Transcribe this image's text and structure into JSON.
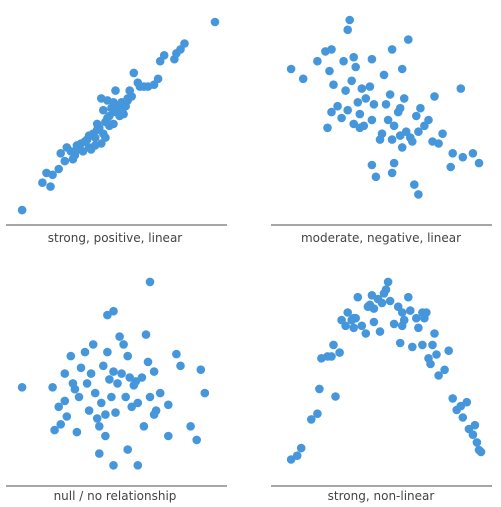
{
  "colors": {
    "point": "#4596db",
    "axis": "#4d4d4d",
    "label": "#444444"
  },
  "chart_data": [
    {
      "type": "scatter",
      "title": "strong, positive, linear",
      "xlim": [
        0,
        10
      ],
      "ylim": [
        0,
        10
      ],
      "points": [
        [
          0.4,
          0.3
        ],
        [
          1.4,
          1.7
        ],
        [
          1.8,
          1.5
        ],
        [
          1.9,
          2.1
        ],
        [
          2.2,
          2.4
        ],
        [
          1.6,
          2.2
        ],
        [
          2.5,
          2.8
        ],
        [
          2.3,
          3.2
        ],
        [
          2.9,
          2.9
        ],
        [
          2.6,
          3.5
        ],
        [
          3.0,
          3.1
        ],
        [
          3.1,
          3.6
        ],
        [
          3.4,
          3.3
        ],
        [
          3.5,
          3.8
        ],
        [
          3.2,
          3.4
        ],
        [
          3.7,
          3.5
        ],
        [
          3.6,
          3.9
        ],
        [
          4.0,
          3.6
        ],
        [
          3.9,
          4.2
        ],
        [
          4.3,
          3.7
        ],
        [
          4.1,
          4.4
        ],
        [
          4.4,
          4.2
        ],
        [
          4.2,
          4.5
        ],
        [
          4.5,
          4.8
        ],
        [
          4.7,
          4.6
        ],
        [
          4.6,
          5.0
        ],
        [
          4.9,
          4.7
        ],
        [
          5.0,
          5.3
        ],
        [
          4.8,
          5.5
        ],
        [
          5.2,
          5.1
        ],
        [
          5.1,
          5.6
        ],
        [
          5.3,
          5.8
        ],
        [
          5.5,
          5.6
        ],
        [
          5.4,
          5.2
        ],
        [
          5.6,
          6.0
        ],
        [
          4.6,
          5.9
        ],
        [
          5.8,
          6.1
        ],
        [
          4.3,
          6.0
        ],
        [
          5.0,
          6.4
        ],
        [
          5.7,
          6.4
        ],
        [
          6.1,
          6.8
        ],
        [
          6.6,
          6.6
        ],
        [
          6.9,
          6.7
        ],
        [
          7.1,
          7.0
        ],
        [
          5.9,
          7.3
        ],
        [
          4.4,
          5.4
        ],
        [
          4.0,
          4.0
        ],
        [
          3.8,
          3.4
        ],
        [
          4.7,
          5.1
        ],
        [
          5.3,
          5.4
        ],
        [
          3.3,
          3.7
        ],
        [
          3.0,
          3.3
        ],
        [
          6.2,
          6.6
        ],
        [
          6.4,
          6.6
        ],
        [
          7.2,
          7.9
        ],
        [
          7.9,
          8.0
        ],
        [
          8.0,
          8.3
        ],
        [
          8.2,
          8.5
        ],
        [
          8.4,
          8.8
        ],
        [
          7.4,
          8.2
        ],
        [
          4.1,
          4.7
        ],
        [
          5.6,
          5.9
        ],
        [
          4.9,
          5.8
        ],
        [
          3.5,
          3.8
        ],
        [
          4.5,
          4.0
        ],
        [
          2.8,
          3.3
        ],
        [
          3.7,
          4.1
        ],
        [
          9.9,
          9.9
        ]
      ]
    },
    {
      "type": "scatter",
      "title": "moderate, negative, linear",
      "xlim": [
        0,
        10
      ],
      "ylim": [
        0,
        10
      ],
      "points": [
        [
          0.5,
          7.5
        ],
        [
          1.1,
          7.0
        ],
        [
          1.8,
          7.9
        ],
        [
          2.2,
          8.4
        ],
        [
          2.4,
          7.4
        ],
        [
          2.5,
          8.5
        ],
        [
          3.1,
          7.9
        ],
        [
          3.3,
          9.5
        ],
        [
          3.6,
          8.1
        ],
        [
          4.5,
          8.0
        ],
        [
          3.4,
          10.0
        ],
        [
          2.6,
          6.7
        ],
        [
          3.2,
          6.4
        ],
        [
          3.5,
          6.9
        ],
        [
          3.8,
          5.8
        ],
        [
          4.2,
          6.0
        ],
        [
          4.4,
          6.6
        ],
        [
          2.8,
          5.6
        ],
        [
          3.0,
          5.0
        ],
        [
          3.3,
          5.4
        ],
        [
          3.6,
          4.7
        ],
        [
          3.9,
          5.2
        ],
        [
          4.1,
          4.6
        ],
        [
          4.5,
          4.9
        ],
        [
          5.1,
          7.2
        ],
        [
          5.2,
          5.7
        ],
        [
          5.4,
          6.2
        ],
        [
          5.3,
          4.9
        ],
        [
          5.6,
          4.6
        ],
        [
          5.8,
          5.3
        ],
        [
          5.0,
          4.2
        ],
        [
          4.9,
          3.9
        ],
        [
          5.5,
          3.9
        ],
        [
          5.9,
          4.1
        ],
        [
          6.2,
          4.3
        ],
        [
          6.4,
          4.0
        ],
        [
          6.0,
          3.5
        ],
        [
          6.5,
          3.8
        ],
        [
          6.7,
          5.1
        ],
        [
          6.9,
          5.5
        ],
        [
          7.1,
          4.6
        ],
        [
          7.3,
          4.9
        ],
        [
          6.8,
          4.3
        ],
        [
          7.5,
          3.8
        ],
        [
          7.6,
          6.1
        ],
        [
          8.0,
          4.2
        ],
        [
          4.7,
          2.0
        ],
        [
          4.5,
          2.6
        ],
        [
          5.6,
          2.7
        ],
        [
          5.5,
          2.2
        ],
        [
          6.6,
          1.6
        ],
        [
          6.8,
          1.1
        ],
        [
          8.4,
          2.5
        ],
        [
          8.5,
          3.2
        ],
        [
          9.0,
          3.0
        ],
        [
          9.5,
          3.2
        ],
        [
          8.9,
          6.5
        ],
        [
          9.8,
          2.7
        ],
        [
          6.3,
          9.0
        ],
        [
          5.5,
          8.5
        ],
        [
          6.0,
          7.5
        ],
        [
          3.9,
          4.5
        ],
        [
          4.6,
          5.7
        ],
        [
          2.3,
          4.5
        ],
        [
          2.5,
          5.3
        ],
        [
          3.7,
          7.6
        ],
        [
          5.9,
          5.5
        ],
        [
          7.8,
          3.7
        ],
        [
          6.1,
          6.0
        ],
        [
          4.0,
          6.5
        ]
      ]
    },
    {
      "type": "scatter",
      "title": "null / no relationship",
      "xlim": [
        0,
        10
      ],
      "ylim": [
        0,
        10
      ],
      "points": [
        [
          0.4,
          4.5
        ],
        [
          1.9,
          4.5
        ],
        [
          2.2,
          3.5
        ],
        [
          2.3,
          2.6
        ],
        [
          2.5,
          5.2
        ],
        [
          2.6,
          3.0
        ],
        [
          2.8,
          6.1
        ],
        [
          3.0,
          4.4
        ],
        [
          3.2,
          4.0
        ],
        [
          3.3,
          5.5
        ],
        [
          3.5,
          6.3
        ],
        [
          3.7,
          3.3
        ],
        [
          3.8,
          5.2
        ],
        [
          4.0,
          4.2
        ],
        [
          4.1,
          2.9
        ],
        [
          4.3,
          3.7
        ],
        [
          4.4,
          5.6
        ],
        [
          4.6,
          6.3
        ],
        [
          4.7,
          4.9
        ],
        [
          4.8,
          4.0
        ],
        [
          4.9,
          5.3
        ],
        [
          5.0,
          3.2
        ],
        [
          5.1,
          4.7
        ],
        [
          5.2,
          7.1
        ],
        [
          5.3,
          5.2
        ],
        [
          5.5,
          4.0
        ],
        [
          5.6,
          6.1
        ],
        [
          5.7,
          5.0
        ],
        [
          5.8,
          3.5
        ],
        [
          5.9,
          4.6
        ],
        [
          6.1,
          3.7
        ],
        [
          6.3,
          5.0
        ],
        [
          6.4,
          2.5
        ],
        [
          6.5,
          7.2
        ],
        [
          6.6,
          5.8
        ],
        [
          6.7,
          4.0
        ],
        [
          6.9,
          5.3
        ],
        [
          7.0,
          3.3
        ],
        [
          7.2,
          4.2
        ],
        [
          4.5,
          2.0
        ],
        [
          4.2,
          2.5
        ],
        [
          3.1,
          2.2
        ],
        [
          2.0,
          2.3
        ],
        [
          2.5,
          3.8
        ],
        [
          4.6,
          8.2
        ],
        [
          4.9,
          8.4
        ],
        [
          6.7,
          9.9
        ],
        [
          7.6,
          2.0
        ],
        [
          8.0,
          6.2
        ],
        [
          8.2,
          5.6
        ],
        [
          8.7,
          2.5
        ],
        [
          9.0,
          1.8
        ],
        [
          9.2,
          5.4
        ],
        [
          9.4,
          4.2
        ],
        [
          3.6,
          4.7
        ],
        [
          5.4,
          6.7
        ],
        [
          6.0,
          4.8
        ],
        [
          4.5,
          3.1
        ],
        [
          4.2,
          1.1
        ],
        [
          6.1,
          0.5
        ],
        [
          4.9,
          0.5
        ],
        [
          5.6,
          1.3
        ],
        [
          2.9,
          4.7
        ],
        [
          6.9,
          3.1
        ],
        [
          7.6,
          3.6
        ],
        [
          3.9,
          6.7
        ]
      ]
    },
    {
      "type": "scatter",
      "title": "strong, non-linear",
      "xlim": [
        0,
        10
      ],
      "ylim": [
        0,
        10
      ],
      "points": [
        [
          0.5,
          0.6
        ],
        [
          0.8,
          0.8
        ],
        [
          1.0,
          1.2
        ],
        [
          1.5,
          2.7
        ],
        [
          1.8,
          3.0
        ],
        [
          1.9,
          4.3
        ],
        [
          2.0,
          5.9
        ],
        [
          2.3,
          6.0
        ],
        [
          2.5,
          6.0
        ],
        [
          2.6,
          6.6
        ],
        [
          2.7,
          3.9
        ],
        [
          2.9,
          6.2
        ],
        [
          3.0,
          7.9
        ],
        [
          3.2,
          7.6
        ],
        [
          3.3,
          8.3
        ],
        [
          3.5,
          7.9
        ],
        [
          3.6,
          8.0
        ],
        [
          3.8,
          9.1
        ],
        [
          3.7,
          8.0
        ],
        [
          4.0,
          7.6
        ],
        [
          4.2,
          7.2
        ],
        [
          4.3,
          8.6
        ],
        [
          4.4,
          8.7
        ],
        [
          4.5,
          9.2
        ],
        [
          4.6,
          8.5
        ],
        [
          4.8,
          9.0
        ],
        [
          4.9,
          7.3
        ],
        [
          5.0,
          8.8
        ],
        [
          5.1,
          9.3
        ],
        [
          5.2,
          9.5
        ],
        [
          5.3,
          9.9
        ],
        [
          5.4,
          8.9
        ],
        [
          5.6,
          7.7
        ],
        [
          5.8,
          8.6
        ],
        [
          5.9,
          6.7
        ],
        [
          6.0,
          8.3
        ],
        [
          6.1,
          7.9
        ],
        [
          6.3,
          9.1
        ],
        [
          6.4,
          8.4
        ],
        [
          6.5,
          6.5
        ],
        [
          6.7,
          8.0
        ],
        [
          6.8,
          7.5
        ],
        [
          7.0,
          8.3
        ],
        [
          7.1,
          8.0
        ],
        [
          7.2,
          8.3
        ],
        [
          7.3,
          5.9
        ],
        [
          7.4,
          5.6
        ],
        [
          7.5,
          6.6
        ],
        [
          7.6,
          7.2
        ],
        [
          7.0,
          6.6
        ],
        [
          7.7,
          6.1
        ],
        [
          7.8,
          5.0
        ],
        [
          8.1,
          5.3
        ],
        [
          8.5,
          3.8
        ],
        [
          8.7,
          3.2
        ],
        [
          8.9,
          3.4
        ],
        [
          9.0,
          2.8
        ],
        [
          9.2,
          3.6
        ],
        [
          9.3,
          2.2
        ],
        [
          9.5,
          1.9
        ],
        [
          9.6,
          2.4
        ],
        [
          9.7,
          1.5
        ],
        [
          9.8,
          1.1
        ],
        [
          9.9,
          1.0
        ],
        [
          6.0,
          7.6
        ],
        [
          4.6,
          7.8
        ],
        [
          3.6,
          7.5
        ],
        [
          8.3,
          6.3
        ]
      ]
    }
  ]
}
